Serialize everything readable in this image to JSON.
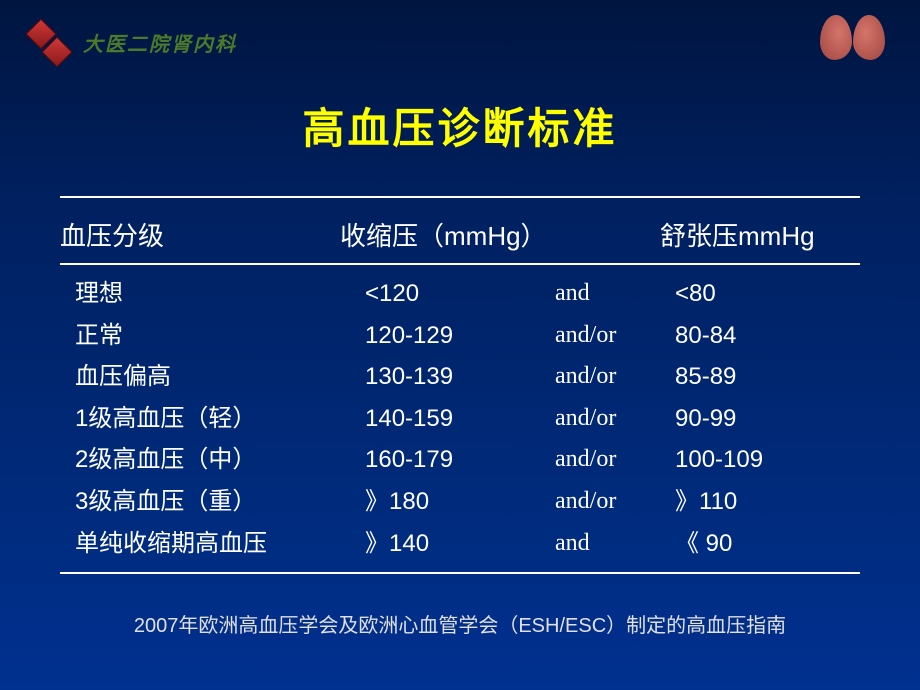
{
  "header": {
    "hospital_name": "大医二院肾内科",
    "logo_icon_name": "double-diamond-logo",
    "decoration_icon_name": "kidneys-icon"
  },
  "title": "高血压诊断标准",
  "table": {
    "columns": {
      "c1": "血压分级",
      "c2": "收缩压（mmHg）",
      "c3": "",
      "c4": "舒张压mmHg"
    },
    "rows": [
      {
        "label": "理想",
        "systolic": "<120",
        "conj": "and",
        "diastolic": "<80"
      },
      {
        "label": "正常",
        "systolic": "120-129",
        "conj": "and/or",
        "diastolic": "80-84"
      },
      {
        "label": "血压偏高",
        "systolic": "130-139",
        "conj": "and/or",
        "diastolic": "85-89"
      },
      {
        "label": "1级高血压（轻）",
        "systolic": "140-159",
        "conj": "and/or",
        "diastolic": "90-99"
      },
      {
        "label": "2级高血压（中）",
        "systolic": "160-179",
        "conj": "and/or",
        "diastolic": "100-109"
      },
      {
        "label": "3级高血压（重）",
        "systolic": "》180",
        "conj": "and/or",
        "diastolic": "》110"
      },
      {
        "label": "单纯收缩期高血压",
        "systolic": "》140",
        "conj": "and",
        "diastolic": "《 90"
      }
    ]
  },
  "footer": "2007年欧洲高血压学会及欧洲心血管学会（ESH/ESC）制定的高血压指南",
  "styling": {
    "slide_width": 920,
    "slide_height": 690,
    "background_gradient": [
      "#001540",
      "#002060",
      "#002a7a",
      "#003090"
    ],
    "title_color": "#ffff00",
    "title_fontsize": 42,
    "text_color": "#ffffff",
    "hospital_name_color": "#4a7a2a",
    "hospital_name_fontsize": 20,
    "logo_diamond_color": "#d03838",
    "kidney_color": "#a04540",
    "rule_color": "#ffffff",
    "rule_width": 2,
    "table_header_fontsize": 26,
    "table_row_fontsize": 24,
    "table_column_widths": [
      280,
      200,
      120,
      180
    ],
    "footer_fontsize": 20,
    "footer_color": "#e0e0e0",
    "font_family": "SimSun"
  }
}
